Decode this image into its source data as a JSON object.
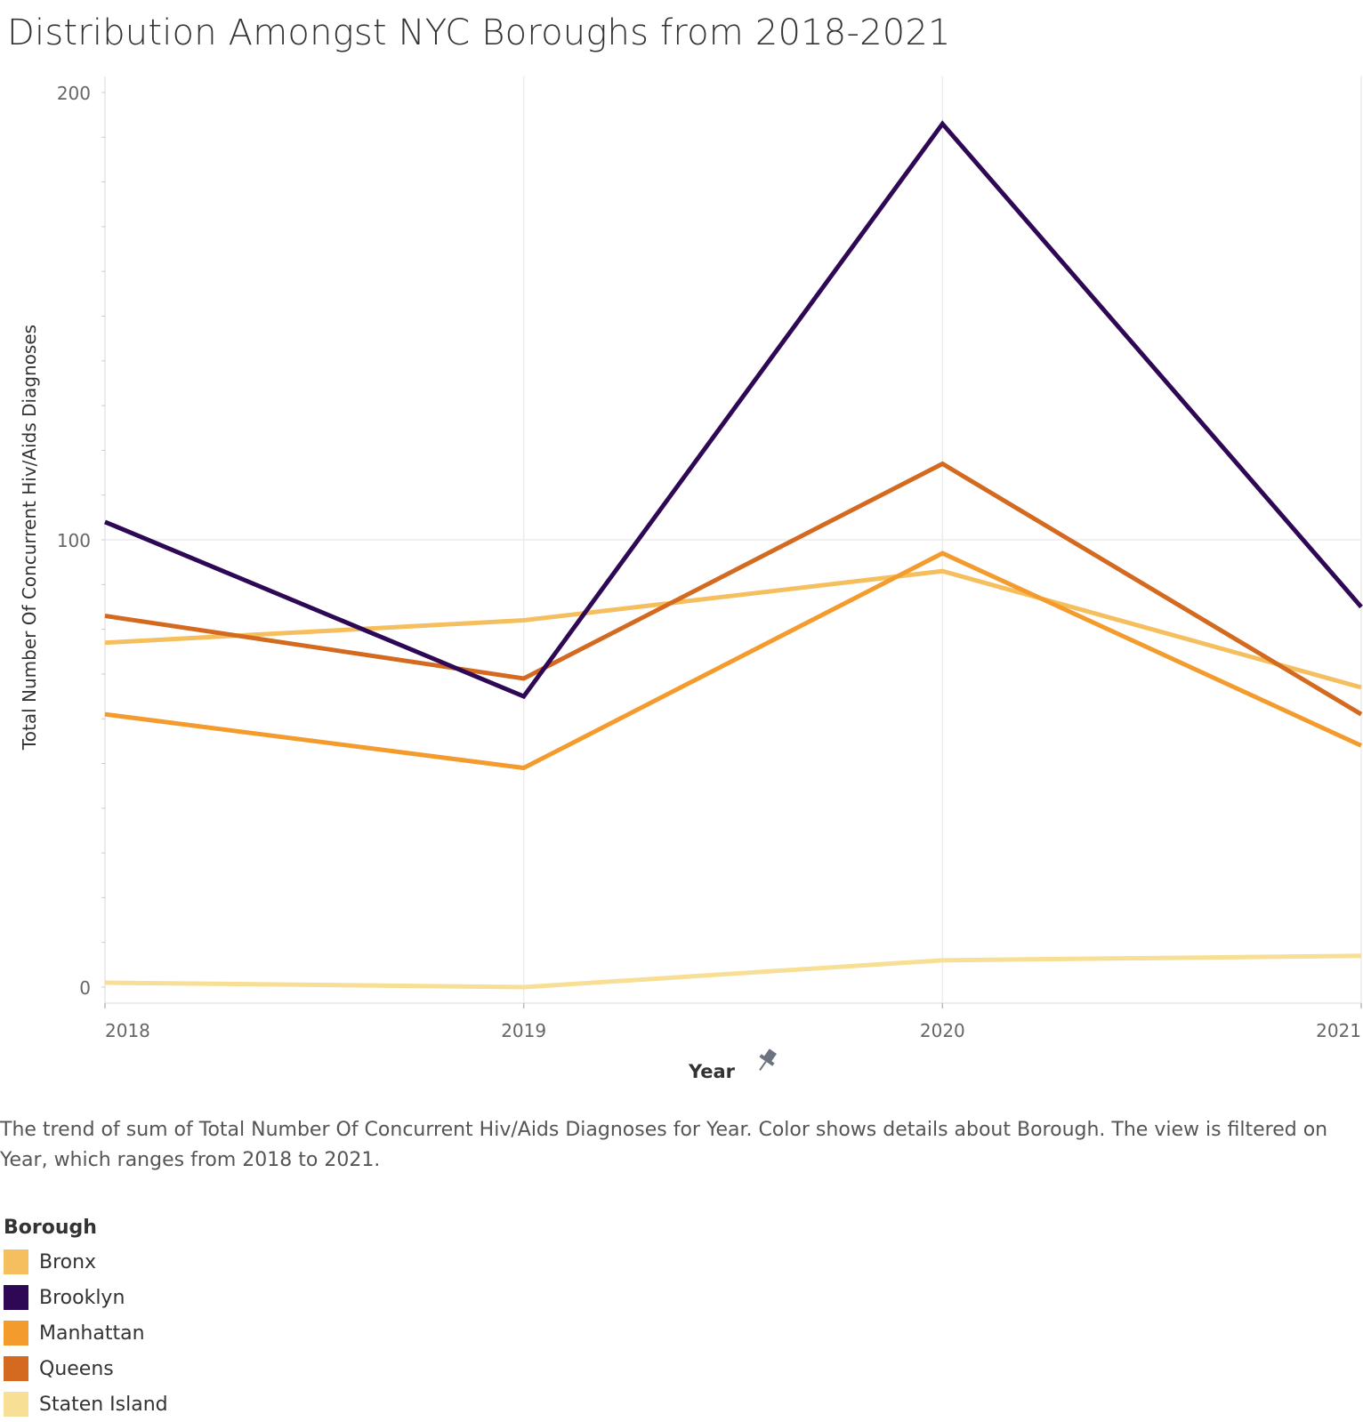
{
  "chart_data": {
    "type": "line",
    "title": "Distribution Amongst NYC Boroughs from 2018-2021",
    "xlabel": "Year",
    "ylabel": "Total Number Of Concurrent Hiv/Aids Diagnoses",
    "x": [
      "2018",
      "2019",
      "2020",
      "2021"
    ],
    "y_ticks": [
      "0",
      "100",
      "200"
    ],
    "ylim": [
      0,
      200
    ],
    "grid": true,
    "legend_title": "Borough",
    "legend_position": "bottom-left",
    "series": [
      {
        "name": "Bronx",
        "color": "#F5BF5F",
        "values": [
          77,
          82,
          93,
          67
        ]
      },
      {
        "name": "Brooklyn",
        "color": "#2E0854",
        "values": [
          104,
          65,
          193,
          85
        ]
      },
      {
        "name": "Manhattan",
        "color": "#F39B2C",
        "values": [
          61,
          49,
          97,
          54
        ]
      },
      {
        "name": "Queens",
        "color": "#D36A1F",
        "values": [
          83,
          69,
          117,
          61
        ]
      },
      {
        "name": "Staten Island",
        "color": "#F7DF96",
        "values": [
          1,
          0,
          6,
          7
        ]
      }
    ]
  },
  "caption": "The trend of sum of Total Number Of Concurrent Hiv/Aids Diagnoses for Year.  Color shows details about Borough. The view is filtered on Year, which ranges from 2018 to 2021.",
  "icons": {
    "x_axis_pin": "pin-icon"
  }
}
